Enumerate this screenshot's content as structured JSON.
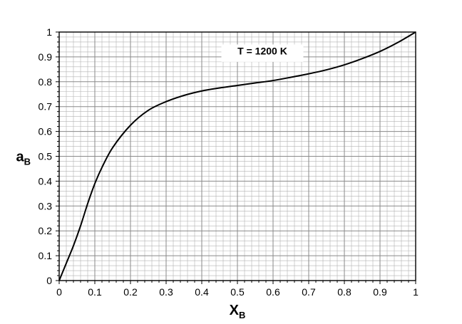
{
  "chart_data": {
    "type": "line",
    "xlim": [
      0,
      1
    ],
    "ylim": [
      0,
      1
    ],
    "grid": true,
    "x_ticks": [
      "0",
      "0.1",
      "0.2",
      "0.3",
      "0.4",
      "0.5",
      "0.6",
      "0.7",
      "0.8",
      "0.9",
      "1"
    ],
    "y_ticks": [
      "0",
      "0.1",
      "0.2",
      "0.3",
      "0.4",
      "0.5",
      "0.6",
      "0.7",
      "0.8",
      "0.9",
      "1"
    ],
    "xlabel": {
      "main": "X",
      "sub": "B"
    },
    "ylabel": {
      "main": "a",
      "sub": "B"
    },
    "annotation": "T = 1200 K",
    "series": [
      {
        "color": "#000000",
        "points": [
          [
            0,
            0
          ],
          [
            0.02,
            0.07
          ],
          [
            0.04,
            0.14
          ],
          [
            0.06,
            0.22
          ],
          [
            0.08,
            0.31
          ],
          [
            0.1,
            0.39
          ],
          [
            0.12,
            0.455
          ],
          [
            0.15,
            0.535
          ],
          [
            0.2,
            0.625
          ],
          [
            0.25,
            0.685
          ],
          [
            0.3,
            0.72
          ],
          [
            0.35,
            0.745
          ],
          [
            0.4,
            0.763
          ],
          [
            0.45,
            0.775
          ],
          [
            0.5,
            0.785
          ],
          [
            0.55,
            0.795
          ],
          [
            0.6,
            0.805
          ],
          [
            0.65,
            0.818
          ],
          [
            0.7,
            0.832
          ],
          [
            0.75,
            0.848
          ],
          [
            0.8,
            0.868
          ],
          [
            0.85,
            0.893
          ],
          [
            0.9,
            0.922
          ],
          [
            0.95,
            0.958
          ],
          [
            1,
            1
          ]
        ]
      }
    ]
  }
}
